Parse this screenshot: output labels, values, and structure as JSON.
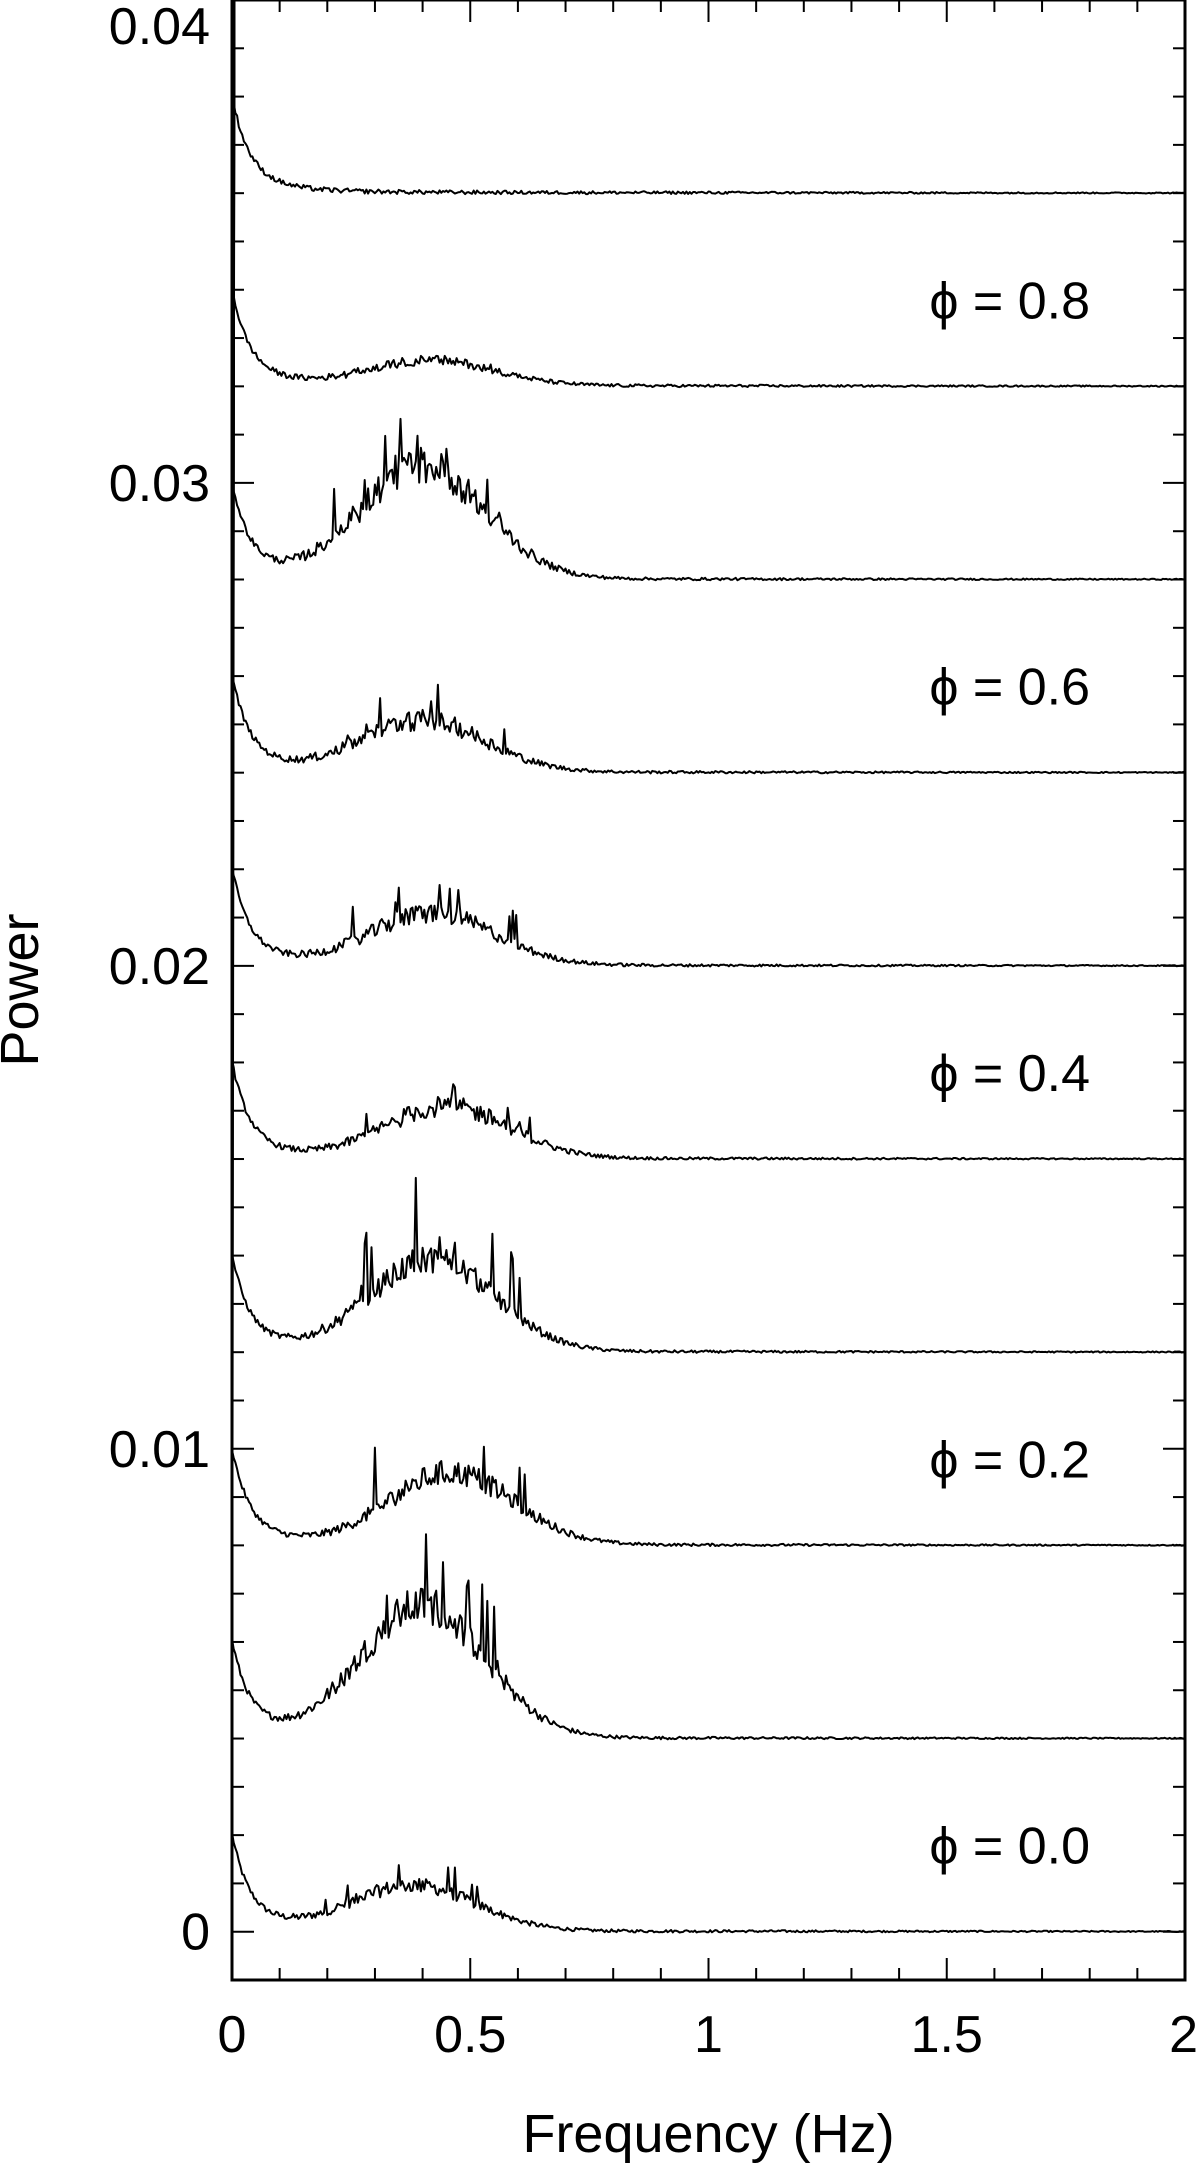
{
  "chart_data": {
    "type": "line",
    "title": "",
    "xlabel": "Frequency (Hz)",
    "ylabel": "Power",
    "xlim": [
      0,
      2
    ],
    "ylim": [
      -0.001,
      0.04
    ],
    "x_ticks": [
      0,
      0.5,
      1,
      1.5,
      2
    ],
    "x_tick_labels": [
      "0",
      "0.5",
      "1",
      "1.5",
      "2"
    ],
    "y_ticks": [
      0,
      0.01,
      0.02,
      0.03,
      0.04
    ],
    "y_tick_labels": [
      "0",
      "0.01",
      "0.02",
      "0.03",
      "0.04"
    ],
    "grid": false,
    "legend": "none",
    "line_color": "#000000",
    "series": [
      {
        "baseline": 0.0,
        "peak_freq": 0.38,
        "peak_height": 0.0009,
        "noise": 0.00022,
        "spike": 0.0006,
        "label": "ϕ = 0.0"
      },
      {
        "baseline": 0.004,
        "peak_freq": 0.4,
        "peak_height": 0.0026,
        "noise": 0.0007,
        "spike": 0.0015
      },
      {
        "baseline": 0.008,
        "peak_freq": 0.46,
        "peak_height": 0.0014,
        "noise": 0.00045,
        "spike": 0.0012,
        "label": "ϕ = 0.2"
      },
      {
        "baseline": 0.012,
        "peak_freq": 0.42,
        "peak_height": 0.0018,
        "noise": 0.0005,
        "spike": 0.0016
      },
      {
        "baseline": 0.016,
        "peak_freq": 0.45,
        "peak_height": 0.001,
        "noise": 0.00035,
        "spike": 0.0007,
        "label": "ϕ = 0.4"
      },
      {
        "baseline": 0.02,
        "peak_freq": 0.42,
        "peak_height": 0.001,
        "noise": 0.00035,
        "spike": 0.0008
      },
      {
        "baseline": 0.024,
        "peak_freq": 0.4,
        "peak_height": 0.001,
        "noise": 0.00035,
        "spike": 0.0006,
        "label": "ϕ = 0.6"
      },
      {
        "baseline": 0.028,
        "peak_freq": 0.4,
        "peak_height": 0.0022,
        "noise": 0.0007,
        "spike": 0.0012
      },
      {
        "baseline": 0.032,
        "peak_freq": 0.42,
        "peak_height": 0.0005,
        "noise": 0.00012,
        "spike": 0.0001,
        "label": "ϕ = 0.8"
      },
      {
        "baseline": 0.036,
        "peak_freq": 0.4,
        "peak_height": 0.0,
        "noise": 8e-05,
        "spike": 0.0001
      }
    ]
  }
}
